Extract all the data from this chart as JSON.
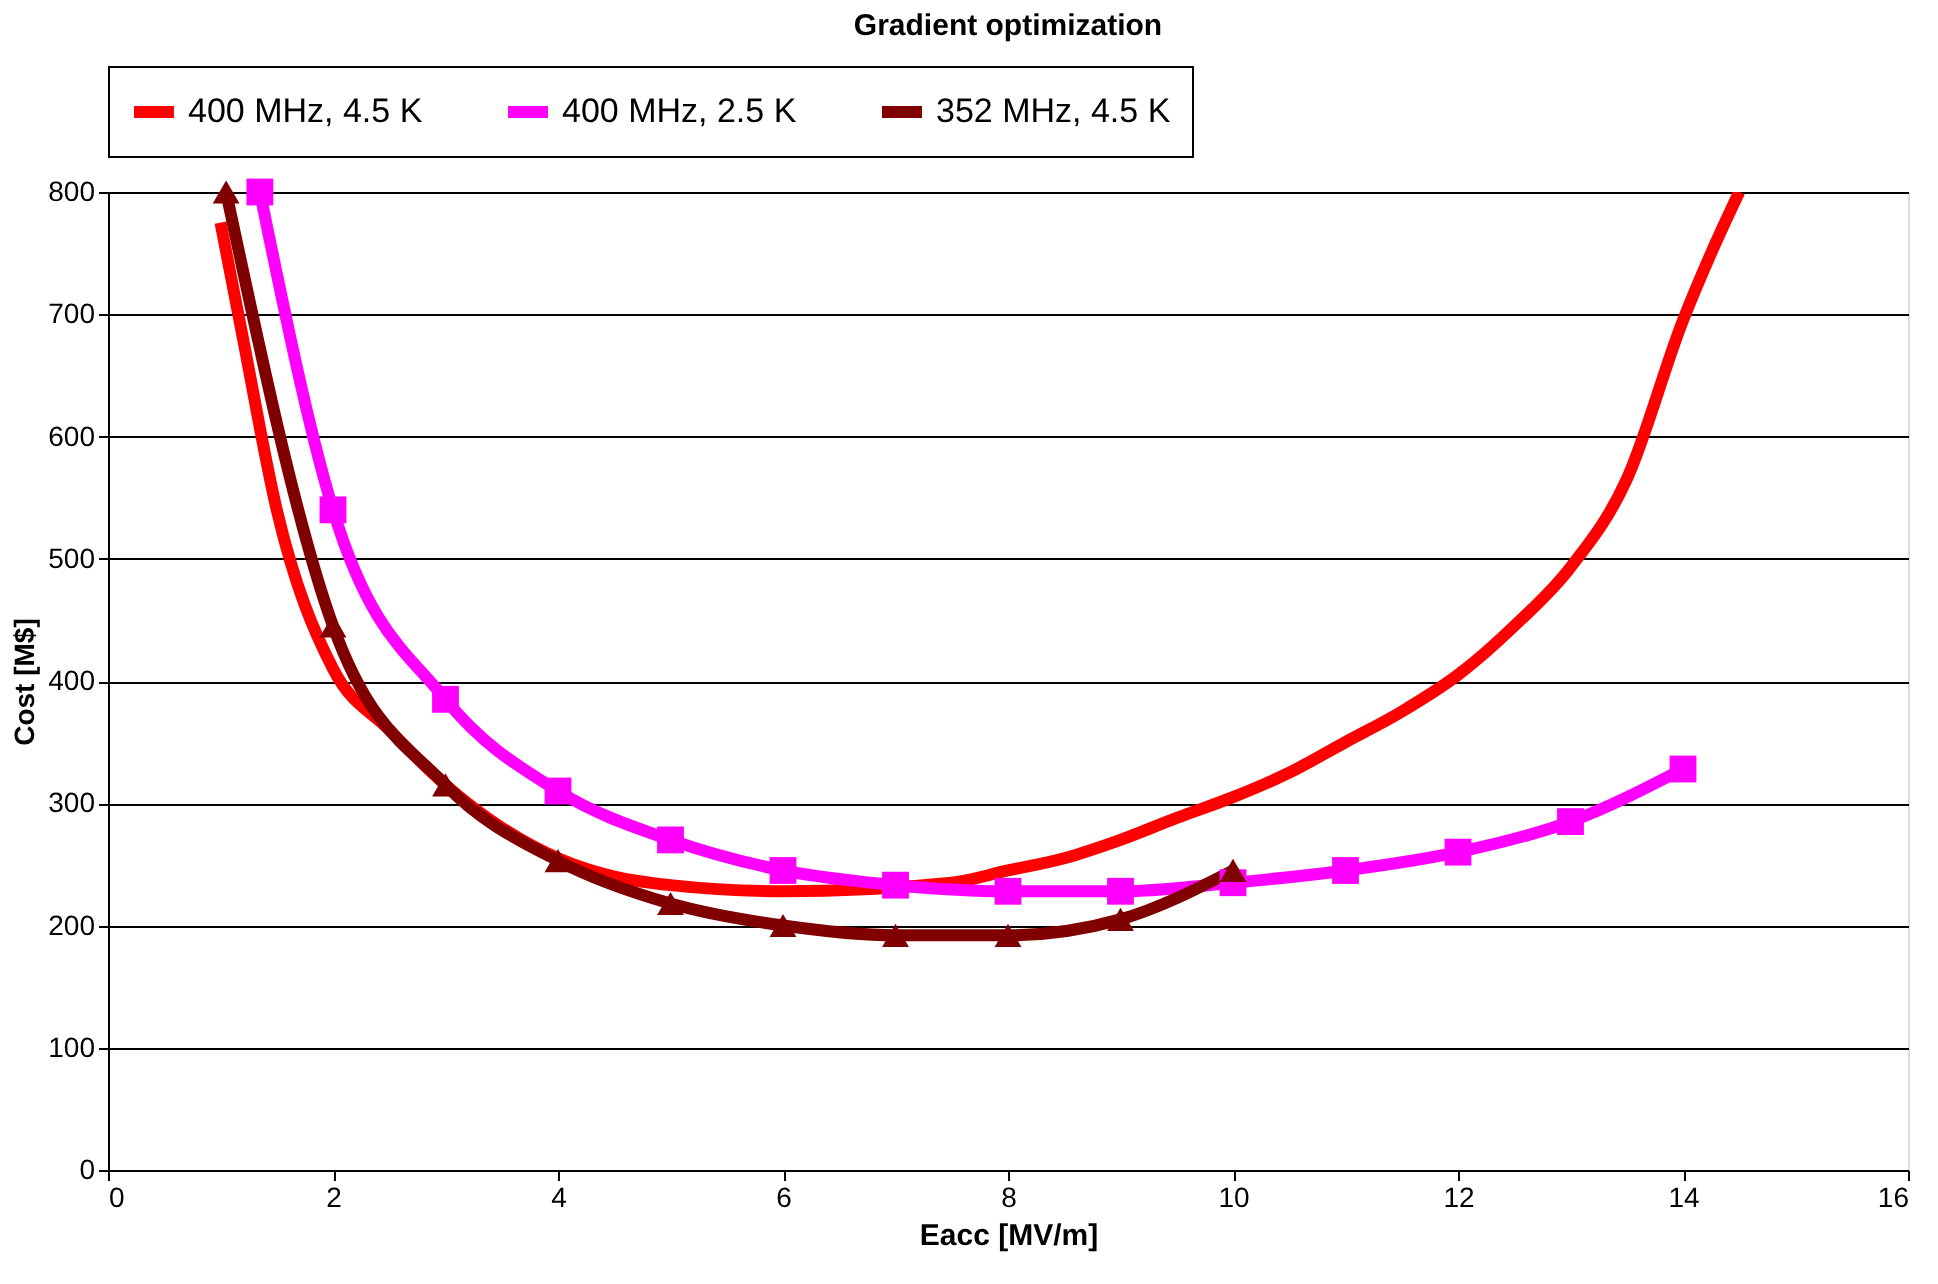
{
  "chart_data": {
    "type": "line",
    "title": "Gradient optimization",
    "xlabel": "Eacc [MV/m]",
    "ylabel": "Cost [M$]",
    "xlim": [
      0,
      16
    ],
    "xticks": [
      0,
      2,
      4,
      6,
      8,
      10,
      12,
      14,
      16
    ],
    "ylim": [
      0,
      800
    ],
    "yticks": [
      0,
      100,
      200,
      300,
      400,
      500,
      600,
      700,
      800
    ],
    "grid": "y",
    "legend": "top",
    "series": [
      {
        "name": "400 MHz, 4.5 K",
        "color": "#ff0000",
        "marker": "none",
        "x": [
          1.0,
          1.2,
          1.5,
          2,
          2.5,
          3,
          3.5,
          4,
          4.5,
          5,
          6,
          7.5,
          8,
          8.5,
          9,
          9.5,
          10,
          10.5,
          11,
          11.5,
          12,
          12.5,
          13,
          13.5,
          14,
          14.25,
          14.5
        ],
        "values": [
          775,
          680,
          540,
          410,
          360,
          315,
          280,
          255,
          240,
          233,
          228,
          235,
          245,
          255,
          270,
          288,
          305,
          325,
          350,
          375,
          405,
          445,
          493,
          565,
          695,
          750,
          800
        ]
      },
      {
        "name": "400 MHz, 2.5 K",
        "color": "#ff00ff",
        "marker": "square",
        "x": [
          1.35,
          2,
          3,
          4,
          5,
          6,
          7,
          8,
          9,
          10,
          11,
          12,
          13,
          14
        ],
        "values": [
          800,
          540,
          385,
          310,
          270,
          245,
          233,
          228,
          228,
          235,
          245,
          260,
          285,
          328
        ]
      },
      {
        "name": "352 MHz, 4.5 K",
        "color": "#800000",
        "marker": "triangle",
        "x": [
          1.05,
          2,
          3,
          4,
          5,
          6,
          7,
          8,
          9,
          10
        ],
        "values": [
          800,
          445,
          315,
          253,
          218,
          200,
          192,
          192,
          205,
          245
        ]
      }
    ]
  }
}
